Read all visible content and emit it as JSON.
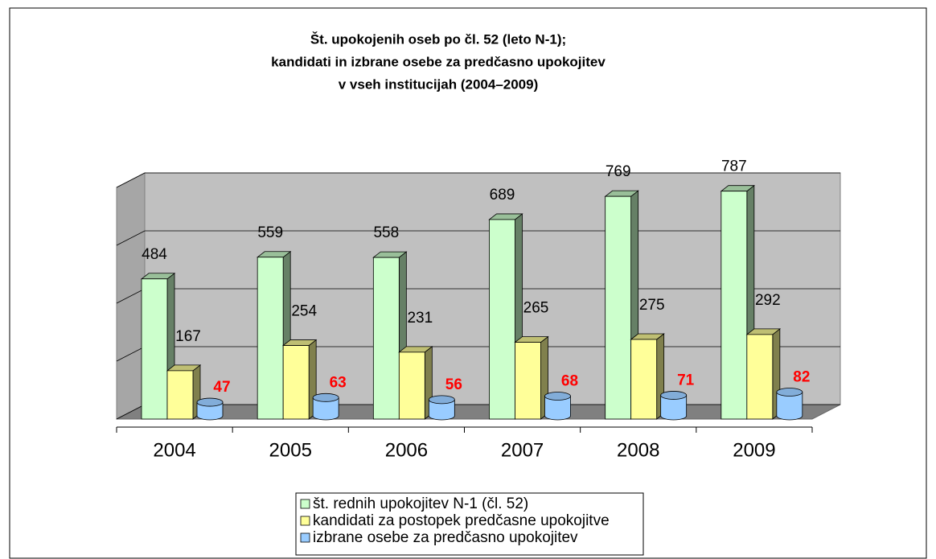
{
  "chart_data": {
    "type": "bar3d",
    "title": [
      "Št. upokojenih oseb po čl. 52 (leto N-1);",
      "kandidati in izbrane osebe za predčasno upokojitev",
      "v vseh institucijah (2004–2009)"
    ],
    "categories": [
      "2004",
      "2005",
      "2006",
      "2007",
      "2008",
      "2009"
    ],
    "series": [
      {
        "name": "št. rednih upokojitev N-1 (čl. 52)",
        "color": "#ccffcc",
        "label_color": "#000000",
        "values": [
          484,
          559,
          558,
          689,
          769,
          787
        ]
      },
      {
        "name": "kandidati za postopek predčasne upokojitve",
        "color": "#ffff99",
        "label_color": "#000000",
        "values": [
          167,
          254,
          231,
          265,
          275,
          292
        ]
      },
      {
        "name": "izbrane osebe za predčasno upokojitev",
        "color": "#99ccff",
        "label_color": "#ff0000",
        "values": [
          47,
          63,
          56,
          68,
          71,
          82
        ]
      }
    ],
    "ylim": [
      0,
      800
    ],
    "yticks": [
      0,
      200,
      400,
      600,
      800
    ],
    "grid": true,
    "legend": "bottom"
  }
}
